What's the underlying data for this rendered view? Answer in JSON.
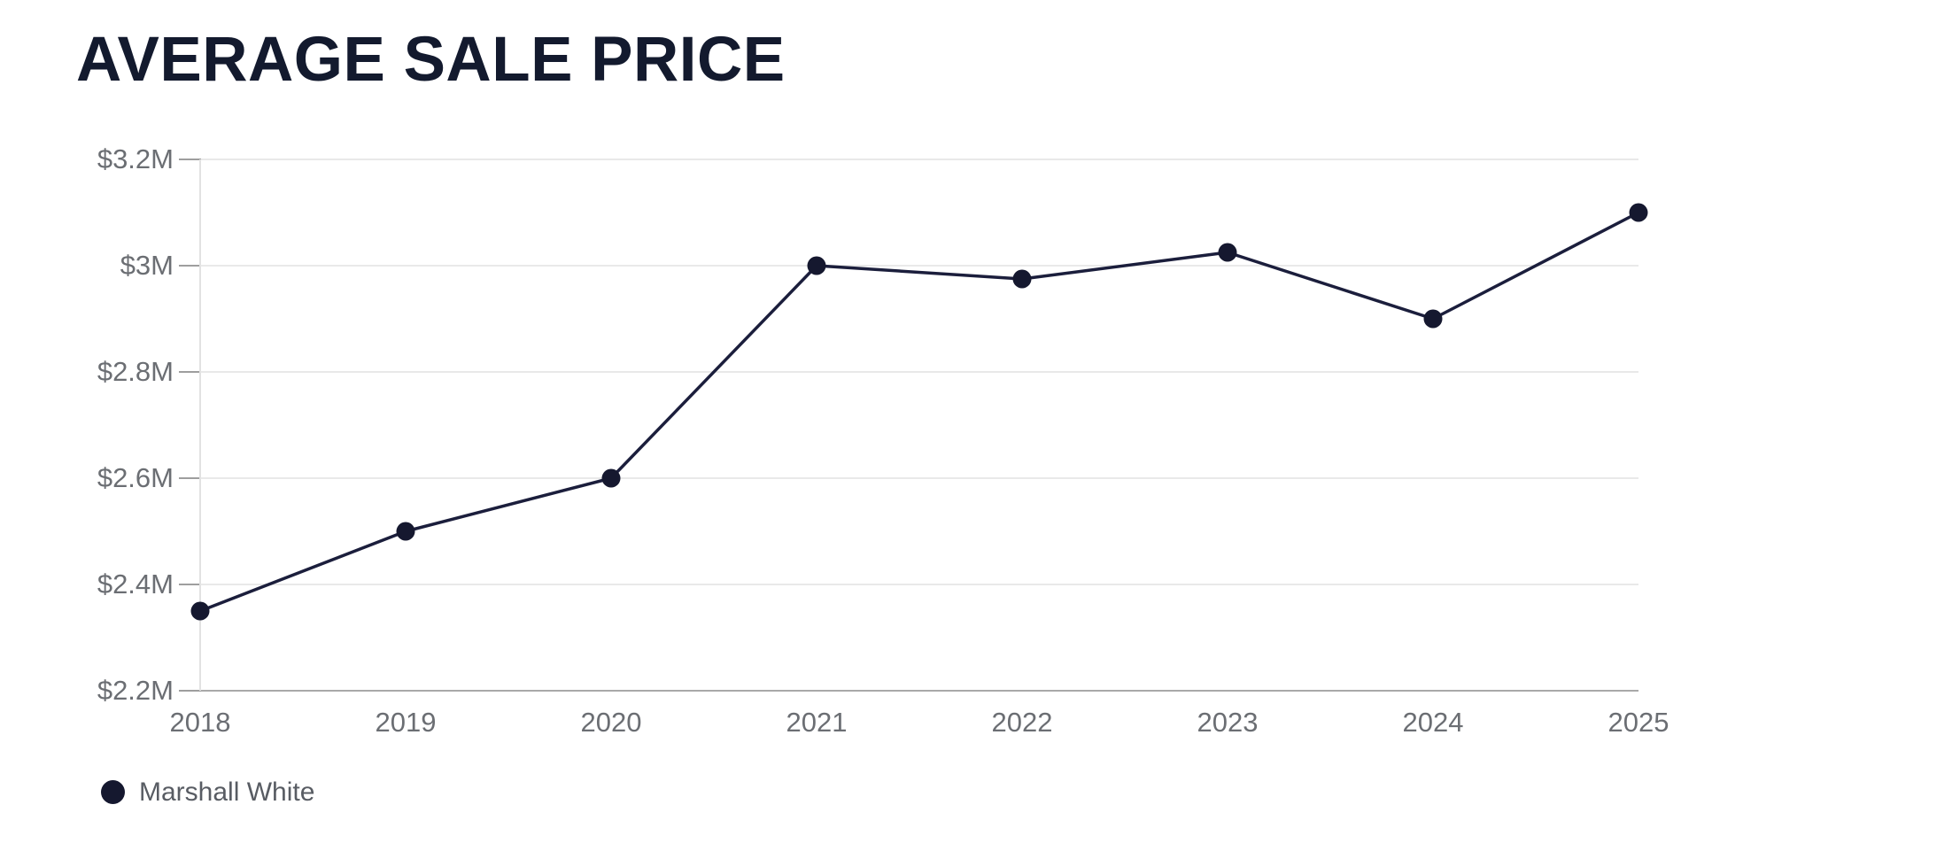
{
  "title": "AVERAGE SALE PRICE",
  "colors": {
    "background": "#ffffff",
    "title_text": "#131a2e",
    "axis_label_text": "#6b6e73",
    "legend_text": "#585c63",
    "series_line": "#1b1e3c",
    "series_point": "#15182f",
    "gridline": "#e9e9e9",
    "bottom_axis_line": "#a9a9a9",
    "left_axis_line": "#e2e2e2",
    "tick_mark": "#9e9e9e"
  },
  "chart_data": {
    "type": "line",
    "title": "AVERAGE SALE PRICE",
    "categories": [
      "2018",
      "2019",
      "2020",
      "2021",
      "2022",
      "2023",
      "2024",
      "2025"
    ],
    "series": [
      {
        "name": "Marshall White",
        "color": "#15182f",
        "unit": "$M",
        "values": [
          2.35,
          2.5,
          2.6,
          3.0,
          2.975,
          3.025,
          2.9,
          3.1
        ]
      }
    ],
    "ylim": [
      2.2,
      3.2
    ],
    "yticks": [
      {
        "value": 3.2,
        "label": "$3.2M"
      },
      {
        "value": 3.0,
        "label": "$3M"
      },
      {
        "value": 2.8,
        "label": "$2.8M"
      },
      {
        "value": 2.6,
        "label": "$2.6M"
      },
      {
        "value": 2.4,
        "label": "$2.4M"
      },
      {
        "value": 2.2,
        "label": "$2.2M"
      }
    ],
    "xlabel": "",
    "ylabel": "",
    "grid": "horizontal",
    "markers": "filled-circle",
    "legend_position": "bottom-left"
  }
}
